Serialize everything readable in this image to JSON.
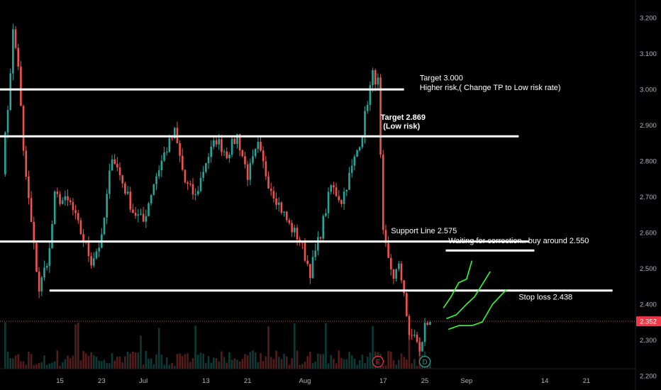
{
  "colors": {
    "background": "#000000",
    "axis_text": "#b2b5be",
    "up": "#26a69a",
    "down": "#ef5350",
    "level_line": "#ffffff",
    "projection": "#33ff33",
    "current_price_badge": "#f23645",
    "event_earnings": "#f23645",
    "event_dividend": "#26a69a"
  },
  "chart_data": {
    "type": "candlestick",
    "title": "",
    "y_axis": {
      "side": "right",
      "ticks": [
        "3.200",
        "3.100",
        "3.000",
        "2.900",
        "2.800",
        "2.700",
        "2.600",
        "2.500",
        "2.400",
        "2.300",
        "2.200"
      ],
      "tick_values": [
        3.2,
        3.1,
        3.0,
        2.9,
        2.8,
        2.7,
        2.6,
        2.5,
        2.4,
        2.3,
        2.2
      ],
      "range": [
        2.16,
        3.25
      ]
    },
    "x_axis": {
      "ticks": [
        {
          "label": "15",
          "day": 15
        },
        {
          "label": "23",
          "day": 23
        },
        {
          "label": "Jul",
          "day": 31
        },
        {
          "label": "13",
          "day": 43
        },
        {
          "label": "21",
          "day": 51
        },
        {
          "label": "Aug",
          "day": 62
        },
        {
          "label": "17",
          "day": 77
        },
        {
          "label": "25",
          "day": 85
        },
        {
          "label": "Sep",
          "day": 93
        },
        {
          "label": "14",
          "day": 108
        },
        {
          "label": "21",
          "day": 116
        }
      ],
      "range": [
        3.5,
        125.4
      ]
    },
    "current_price": "2.352",
    "current_price_value": 2.352,
    "price_series": [
      [
        4,
        2.78
      ],
      [
        5,
        2.95
      ],
      [
        6,
        3.16
      ],
      [
        7,
        3.07
      ],
      [
        8,
        2.82
      ],
      [
        10,
        2.56
      ],
      [
        11,
        2.44
      ],
      [
        13,
        2.55
      ],
      [
        14,
        2.7
      ],
      [
        17,
        2.68
      ],
      [
        19,
        2.6
      ],
      [
        21,
        2.52
      ],
      [
        23,
        2.58
      ],
      [
        25,
        2.82
      ],
      [
        27,
        2.74
      ],
      [
        29,
        2.66
      ],
      [
        31,
        2.63
      ],
      [
        33,
        2.74
      ],
      [
        35,
        2.82
      ],
      [
        37,
        2.88
      ],
      [
        39,
        2.74
      ],
      [
        41,
        2.7
      ],
      [
        43,
        2.8
      ],
      [
        45,
        2.86
      ],
      [
        47,
        2.82
      ],
      [
        49,
        2.87
      ],
      [
        51,
        2.76
      ],
      [
        53,
        2.84
      ],
      [
        55,
        2.74
      ],
      [
        57,
        2.68
      ],
      [
        59,
        2.62
      ],
      [
        61,
        2.58
      ],
      [
        63,
        2.49
      ],
      [
        65,
        2.6
      ],
      [
        67,
        2.73
      ],
      [
        69,
        2.69
      ],
      [
        71,
        2.78
      ],
      [
        73,
        2.88
      ],
      [
        74,
        2.97
      ],
      [
        75,
        3.04
      ],
      [
        76,
        3.02
      ],
      [
        77,
        2.59
      ],
      [
        78,
        2.52
      ],
      [
        79,
        2.48
      ],
      [
        80,
        2.5
      ],
      [
        81,
        2.44
      ],
      [
        82,
        2.3
      ],
      [
        83,
        2.32
      ],
      [
        84,
        2.26
      ],
      [
        85,
        2.34
      ],
      [
        86,
        2.35
      ]
    ],
    "levels": [
      {
        "name": "target-3000-line",
        "value": 3.0,
        "from_day": 3.5,
        "to_day": 81
      },
      {
        "name": "target-2869-line",
        "value": 2.869,
        "from_day": 3.5,
        "to_day": 103
      },
      {
        "name": "support-line",
        "value": 2.575,
        "from_day": 3.5,
        "to_day": 105
      },
      {
        "name": "buy-zone-line",
        "value": 2.55,
        "from_day": 89,
        "to_day": 106
      },
      {
        "name": "stop-loss-line",
        "value": 2.438,
        "from_day": 13,
        "to_day": 121
      }
    ],
    "annotations": [
      {
        "name": "target-3000-label",
        "text": "Target 3.000",
        "day": 84,
        "price": 3.025,
        "bold": false
      },
      {
        "name": "higher-risk-label",
        "text": "Higher risk,( Change TP to Low risk rate)",
        "day": 84,
        "price": 2.998,
        "bold": false
      },
      {
        "name": "target-2869-label",
        "text": "Target 2.869",
        "day": 76.5,
        "price": 2.915,
        "bold": true
      },
      {
        "name": "low-risk-label",
        "text": "(Low risk)",
        "day": 77,
        "price": 2.89,
        "bold": true
      },
      {
        "name": "support-line-label",
        "text": "Support Line 2.575",
        "day": 78.5,
        "price": 2.598,
        "bold": false
      },
      {
        "name": "waiting-correction-label",
        "text": "Waiting for correction.. buy around 2.550",
        "day": 89.5,
        "price": 2.57,
        "bold": false
      },
      {
        "name": "stop-loss-label",
        "text": "Stop loss 2.438",
        "day": 103,
        "price": 2.413,
        "bold": false
      }
    ],
    "projections": [
      [
        [
          88.6,
          2.39
        ],
        [
          90,
          2.42
        ],
        [
          91.5,
          2.46
        ],
        [
          93,
          2.47
        ],
        [
          94,
          2.52
        ]
      ],
      [
        [
          89.2,
          2.36
        ],
        [
          91,
          2.37
        ],
        [
          93,
          2.4
        ],
        [
          94.5,
          2.42
        ],
        [
          97.5,
          2.49
        ]
      ],
      [
        [
          89.6,
          2.33
        ],
        [
          91.5,
          2.34
        ],
        [
          94,
          2.34
        ],
        [
          96,
          2.35
        ],
        [
          98,
          2.4
        ],
        [
          100.6,
          2.44
        ]
      ]
    ],
    "events": [
      {
        "name": "earnings-marker",
        "label": "E",
        "day": 76,
        "color": "#f23645"
      },
      {
        "name": "dividend-marker",
        "label": "D",
        "day": 85,
        "color": "#26a69a"
      }
    ]
  }
}
